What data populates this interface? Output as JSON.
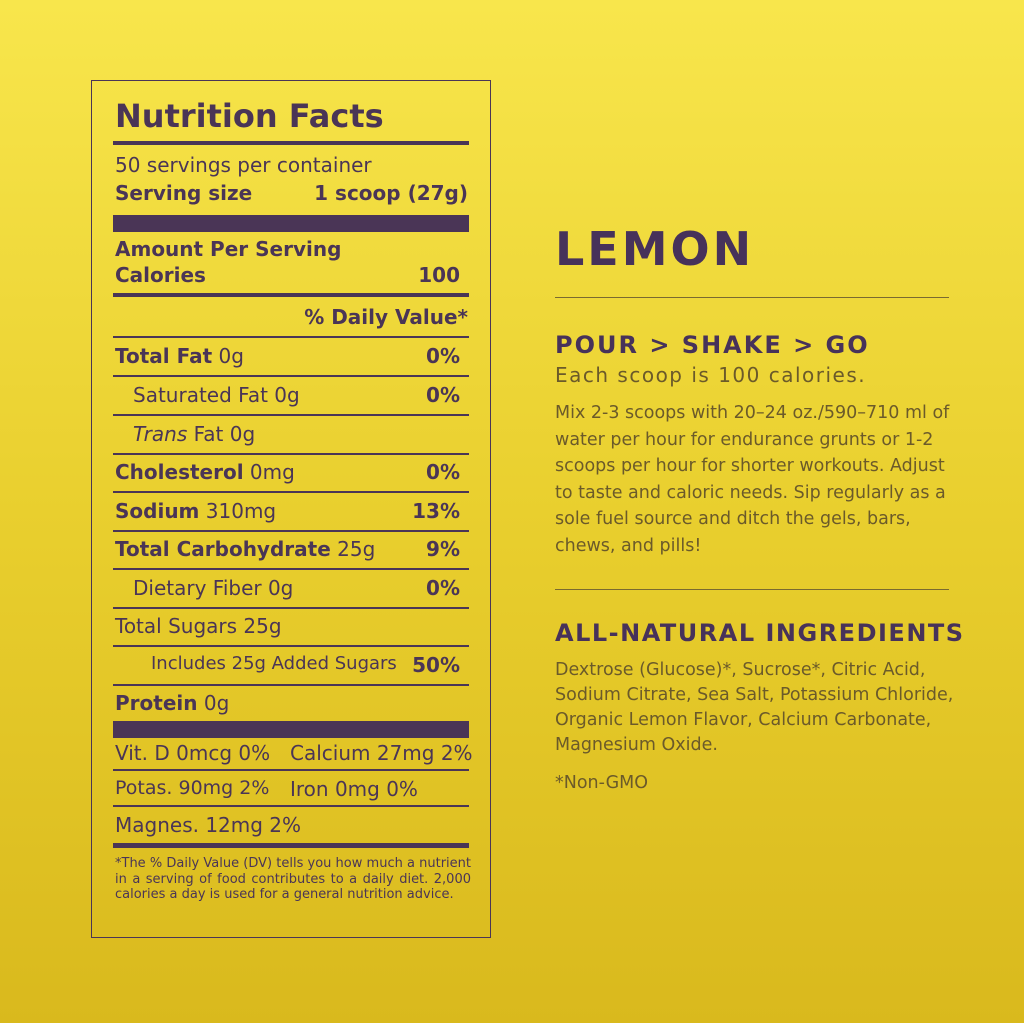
{
  "label": {
    "title": "Nutrition Facts",
    "servings": "50 servings per container",
    "serving_size_label": "Serving size",
    "serving_size_value": "1 scoop (27g)",
    "amount_per_serving": "Amount Per Serving",
    "calories_label": "Calories",
    "calories_value": "100",
    "dv_header": "% Daily Value*",
    "rows": [
      {
        "name": "Total Fat",
        "amount": " 0g",
        "dv": "0%"
      },
      {
        "name": "Saturated Fat 0g",
        "amount": "",
        "dv": "0%"
      },
      {
        "name": "Trans",
        "amount": " Fat 0g",
        "dv": ""
      },
      {
        "name": "Cholesterol",
        "amount": " 0mg",
        "dv": "0%"
      },
      {
        "name": "Sodium",
        "amount": " 310mg",
        "dv": "13%"
      },
      {
        "name": "Total Carbohydrate",
        "amount": " 25g",
        "dv": "9%"
      },
      {
        "name": "Dietary Fiber 0g",
        "amount": "",
        "dv": "0%"
      },
      {
        "name": "Total Sugars 25g",
        "amount": "",
        "dv": ""
      },
      {
        "name": "Includes 25g Added Sugars",
        "amount": "",
        "dv": "50%"
      },
      {
        "name": "Protein",
        "amount": " 0g",
        "dv": ""
      }
    ],
    "vitd": "Vit. D 0mcg 0%",
    "calcium": "Calcium 27mg 2%",
    "potas": "Potas.  90mg 2%",
    "iron": "Iron 0mg 0%",
    "magnes": "Magnes. 12mg 2%",
    "footnote": "*The % Daily Value (DV) tells you how much a nutrient in a serving of food contributes to a daily diet. 2,000 calories a day is used for a general nutrition advice."
  },
  "flavor": "LEMON",
  "directions": {
    "heading": "POUR > SHAKE > GO",
    "subheading": "Each scoop is 100 calories.",
    "text": "Mix 2-3 scoops with 20–24 oz./590–710 ml of water per hour for endurance grunts or 1-2 scoops per hour for shorter workouts. Adjust to taste and caloric needs. Sip regularly as a sole fuel source and ditch the gels, bars, chews, and pills!"
  },
  "ingredients": {
    "heading": "ALL-NATURAL INGREDIENTS",
    "text": "Dextrose (Glucose)*, Sucrose*, Citric Acid, Sodium Citrate, Sea Salt, Potassium Chloride, Organic Lemon Flavor, Calcium Carbonate, Magnesium Oxide.",
    "note": "*Non-GMO"
  },
  "colors": {
    "purple": "#4a3556",
    "background": "#f0d83a",
    "body_text": "#6b5a2a"
  }
}
